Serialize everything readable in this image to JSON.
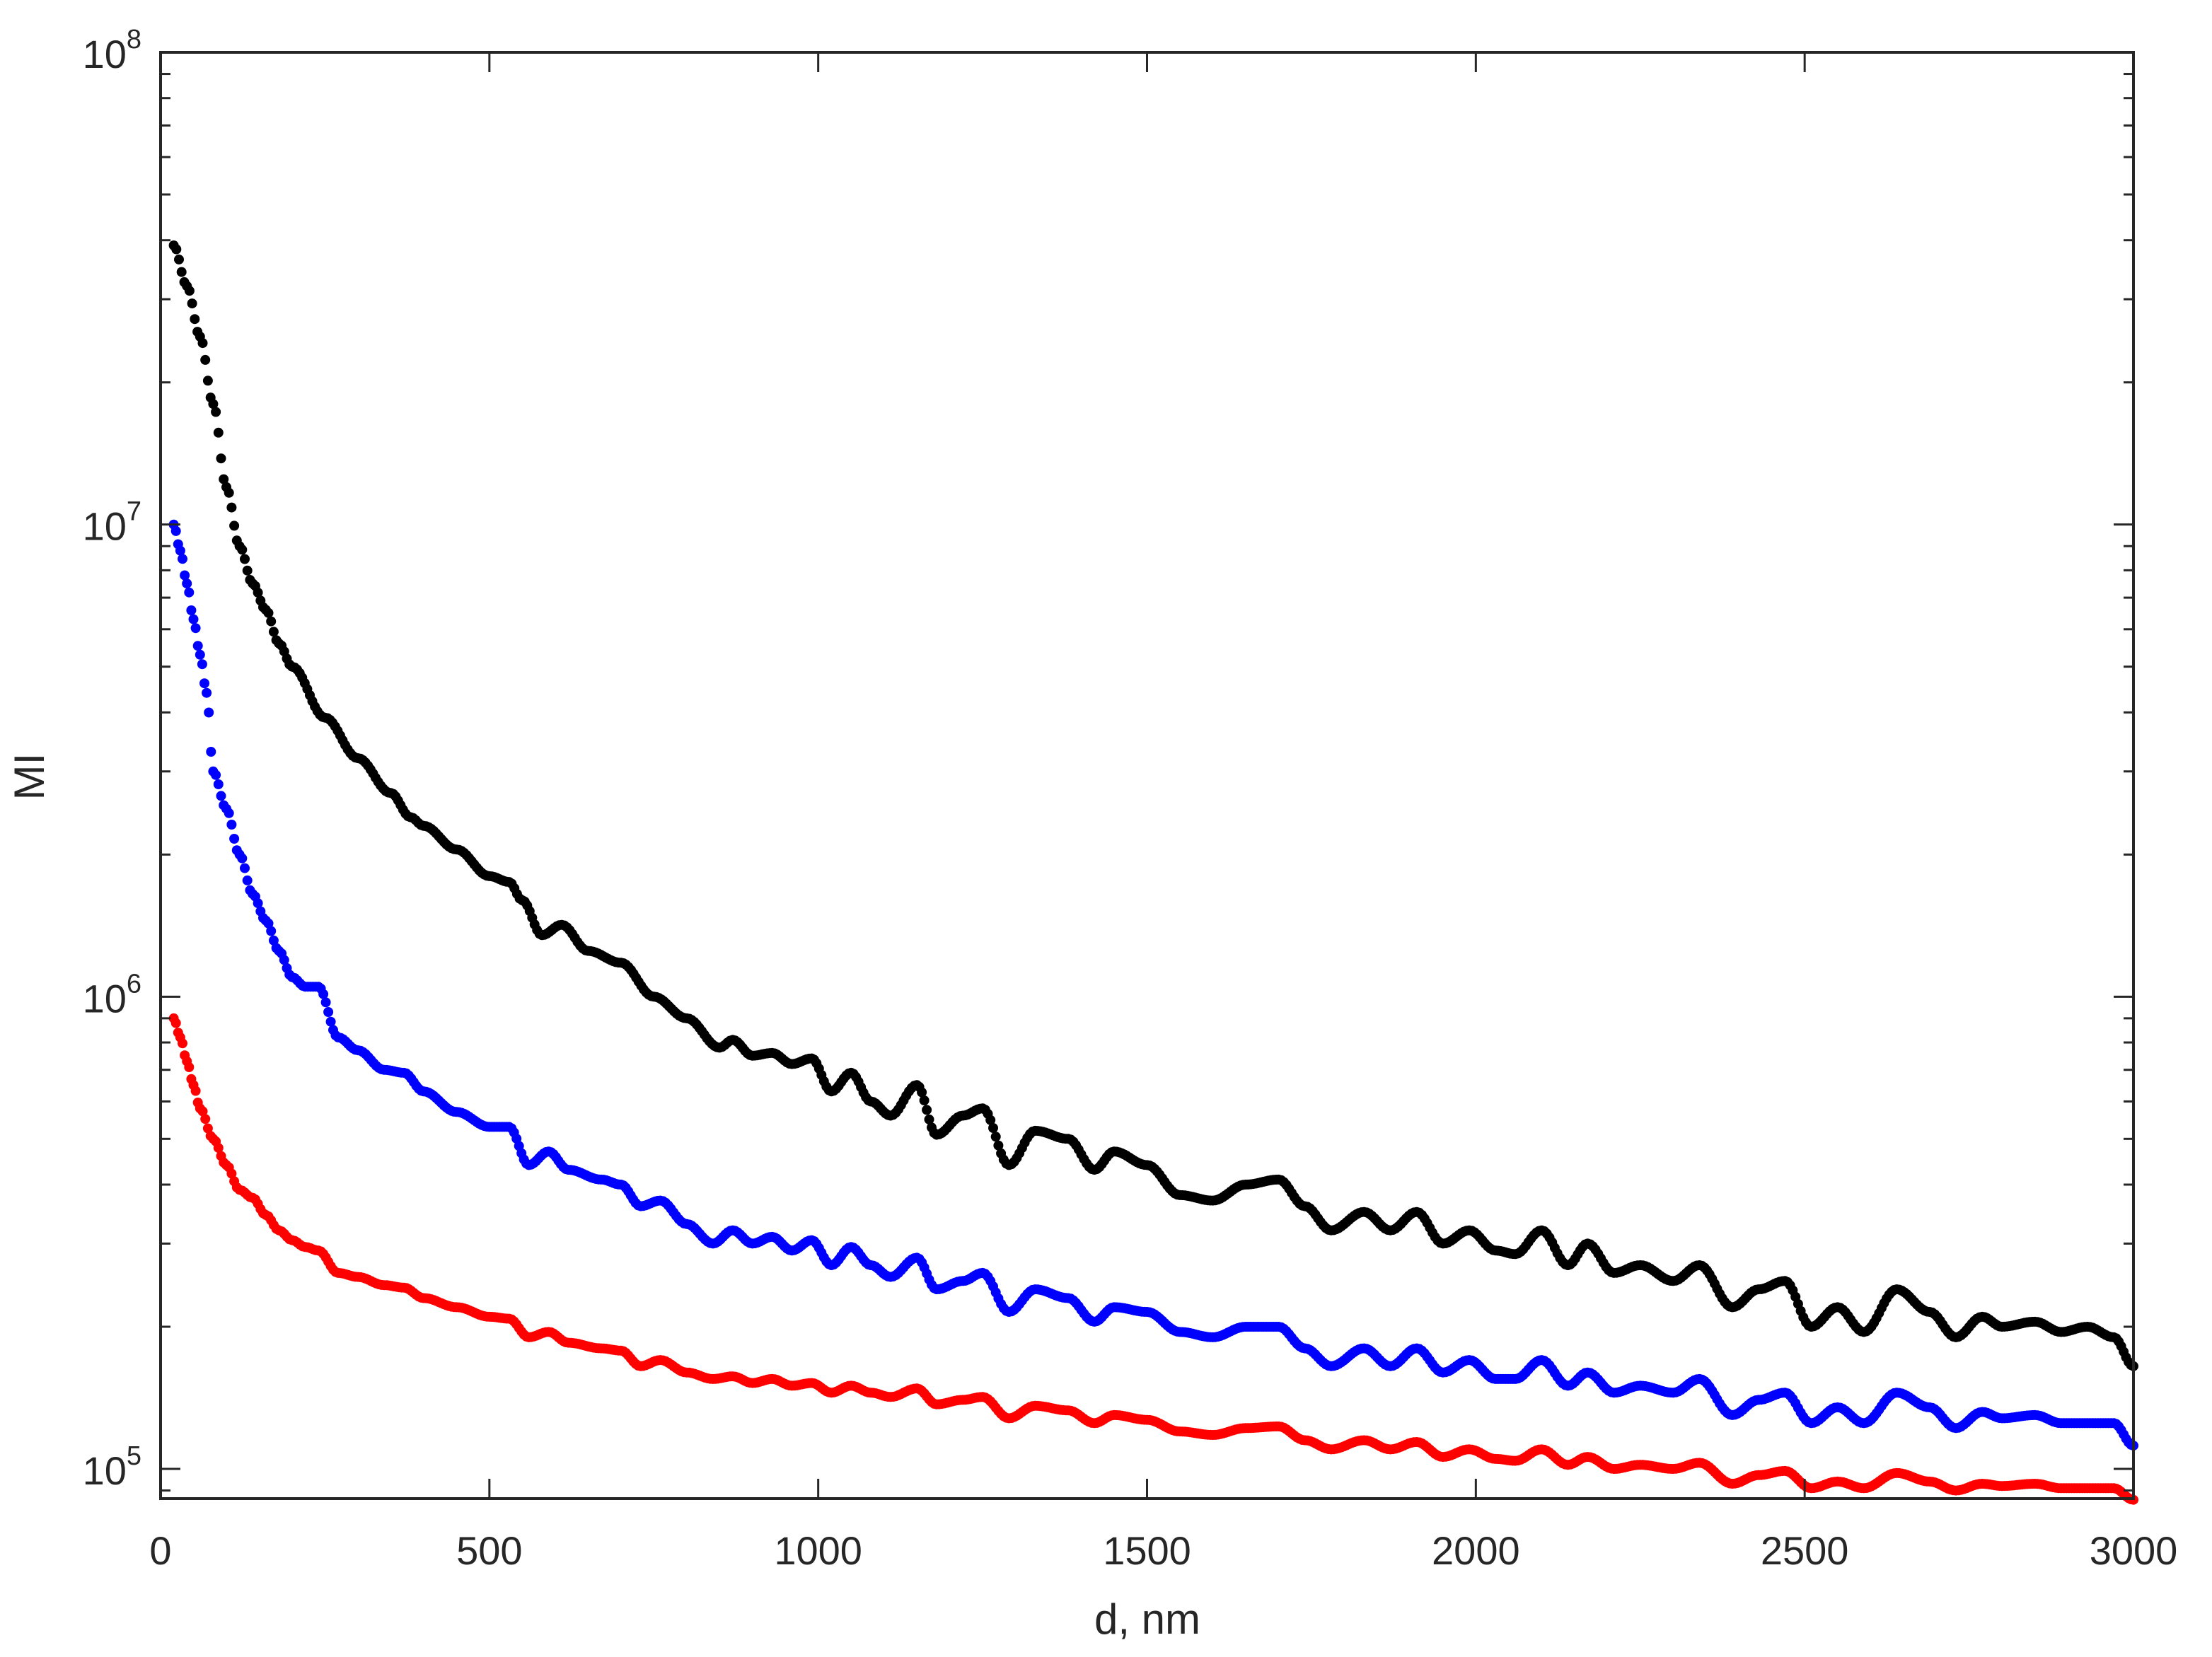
{
  "chart_data": {
    "type": "scatter",
    "title": "",
    "xlabel": "d, nm",
    "ylabel": "MI",
    "xscale": "linear",
    "yscale": "log",
    "xlim": [
      0,
      3000
    ],
    "ylim": [
      86500,
      100000000
    ],
    "xticks": [
      0,
      500,
      1000,
      1500,
      2000,
      2500,
      3000
    ],
    "xtick_labels": [
      "0",
      "500",
      "1000",
      "1500",
      "2000",
      "2500",
      "3000"
    ],
    "yticks": [
      100000,
      1000000,
      10000000,
      100000000
    ],
    "ytick_labels": [
      {
        "base": "10",
        "exp": "5"
      },
      {
        "base": "10",
        "exp": "6"
      },
      {
        "base": "10",
        "exp": "7"
      },
      {
        "base": "10",
        "exp": "8"
      }
    ],
    "grid": false,
    "legend": null,
    "box": true,
    "series": [
      {
        "name": "black",
        "color": "#000000",
        "points": [
          [
            20,
            39000000.0
          ],
          [
            40,
            32000000.0
          ],
          [
            60,
            25000000.0
          ],
          [
            80,
            18000000.0
          ],
          [
            100,
            12000000.0
          ],
          [
            120,
            9000000.0
          ],
          [
            140,
            7500000.0
          ],
          [
            160,
            6600000.0
          ],
          [
            180,
            5600000.0
          ],
          [
            200,
            5000000.0
          ],
          [
            250,
            3900000.0
          ],
          [
            300,
            3200000.0
          ],
          [
            350,
            2700000.0
          ],
          [
            380,
            2400000.0
          ],
          [
            400,
            2300000.0
          ],
          [
            450,
            2050000.0
          ],
          [
            500,
            1800000.0
          ],
          [
            530,
            1750000.0
          ],
          [
            550,
            1600000.0
          ],
          [
            580,
            1350000.0
          ],
          [
            610,
            1420000.0
          ],
          [
            650,
            1250000.0
          ],
          [
            700,
            1180000.0
          ],
          [
            750,
            1000000.0
          ],
          [
            800,
            900000.0
          ],
          [
            850,
            780000.0
          ],
          [
            870,
            810000.0
          ],
          [
            900,
            750000.0
          ],
          [
            930,
            760000.0
          ],
          [
            960,
            720000.0
          ],
          [
            990,
            740000.0
          ],
          [
            1020,
            630000.0
          ],
          [
            1050,
            690000.0
          ],
          [
            1080,
            600000.0
          ],
          [
            1110,
            560000.0
          ],
          [
            1150,
            650000.0
          ],
          [
            1180,
            510000.0
          ],
          [
            1220,
            560000.0
          ],
          [
            1250,
            580000.0
          ],
          [
            1290,
            440000.0
          ],
          [
            1330,
            520000.0
          ],
          [
            1380,
            500000.0
          ],
          [
            1420,
            430000.0
          ],
          [
            1450,
            470000.0
          ],
          [
            1500,
            440000.0
          ],
          [
            1550,
            380000.0
          ],
          [
            1600,
            370000.0
          ],
          [
            1650,
            400000.0
          ],
          [
            1700,
            410000.0
          ],
          [
            1740,
            360000.0
          ],
          [
            1780,
            320000.0
          ],
          [
            1830,
            350000.0
          ],
          [
            1870,
            320000.0
          ],
          [
            1910,
            350000.0
          ],
          [
            1950,
            300000.0
          ],
          [
            1990,
            320000.0
          ],
          [
            2030,
            290000.0
          ],
          [
            2060,
            285000.0
          ],
          [
            2100,
            320000.0
          ],
          [
            2140,
            270000.0
          ],
          [
            2170,
            300000.0
          ],
          [
            2210,
            260000.0
          ],
          [
            2250,
            270000.0
          ],
          [
            2300,
            250000.0
          ],
          [
            2340,
            270000.0
          ],
          [
            2390,
            220000.0
          ],
          [
            2430,
            240000.0
          ],
          [
            2470,
            250000.0
          ],
          [
            2510,
            200000.0
          ],
          [
            2550,
            220000.0
          ],
          [
            2590,
            195000.0
          ],
          [
            2640,
            240000.0
          ],
          [
            2690,
            215000.0
          ],
          [
            2730,
            190000.0
          ],
          [
            2770,
            210000.0
          ],
          [
            2800,
            200000.0
          ],
          [
            2850,
            205000.0
          ],
          [
            2890,
            195000.0
          ],
          [
            2930,
            200000.0
          ],
          [
            2970,
            190000.0
          ],
          [
            3000,
            165000.0
          ]
        ]
      },
      {
        "name": "blue",
        "color": "#0000ff",
        "points": [
          [
            20,
            10000000.0
          ],
          [
            30,
            8800000.0
          ],
          [
            40,
            7500000.0
          ],
          [
            50,
            6300000.0
          ],
          [
            60,
            5300000.0
          ],
          [
            70,
            4400000.0
          ],
          [
            80,
            3000000.0
          ],
          [
            100,
            2500000.0
          ],
          [
            120,
            2000000.0
          ],
          [
            140,
            1650000.0
          ],
          [
            160,
            1450000.0
          ],
          [
            180,
            1250000.0
          ],
          [
            200,
            1100000.0
          ],
          [
            220,
            1050000.0
          ],
          [
            240,
            1050000.0
          ],
          [
            270,
            820000.0
          ],
          [
            300,
            770000.0
          ],
          [
            340,
            700000.0
          ],
          [
            370,
            690000.0
          ],
          [
            400,
            630000.0
          ],
          [
            450,
            570000.0
          ],
          [
            500,
            530000.0
          ],
          [
            530,
            530000.0
          ],
          [
            560,
            440000.0
          ],
          [
            590,
            470000.0
          ],
          [
            620,
            430000.0
          ],
          [
            670,
            410000.0
          ],
          [
            700,
            400000.0
          ],
          [
            730,
            360000.0
          ],
          [
            760,
            370000.0
          ],
          [
            800,
            330000.0
          ],
          [
            840,
            300000.0
          ],
          [
            870,
            320000.0
          ],
          [
            900,
            300000.0
          ],
          [
            930,
            310000.0
          ],
          [
            960,
            290000.0
          ],
          [
            990,
            305000.0
          ],
          [
            1020,
            270000.0
          ],
          [
            1050,
            295000.0
          ],
          [
            1080,
            270000.0
          ],
          [
            1110,
            255000.0
          ],
          [
            1150,
            280000.0
          ],
          [
            1180,
            240000.0
          ],
          [
            1220,
            250000.0
          ],
          [
            1250,
            260000.0
          ],
          [
            1290,
            215000.0
          ],
          [
            1330,
            240000.0
          ],
          [
            1380,
            230000.0
          ],
          [
            1420,
            205000.0
          ],
          [
            1450,
            220000.0
          ],
          [
            1500,
            215000.0
          ],
          [
            1550,
            195000.0
          ],
          [
            1600,
            190000.0
          ],
          [
            1650,
            200000.0
          ],
          [
            1700,
            200000.0
          ],
          [
            1740,
            180000.0
          ],
          [
            1780,
            165000.0
          ],
          [
            1830,
            180000.0
          ],
          [
            1870,
            165000.0
          ],
          [
            1910,
            180000.0
          ],
          [
            1950,
            160000.0
          ],
          [
            1990,
            170000.0
          ],
          [
            2030,
            155000.0
          ],
          [
            2060,
            155000.0
          ],
          [
            2100,
            170000.0
          ],
          [
            2140,
            150000.0
          ],
          [
            2170,
            160000.0
          ],
          [
            2210,
            145000.0
          ],
          [
            2250,
            150000.0
          ],
          [
            2300,
            145000.0
          ],
          [
            2340,
            155000.0
          ],
          [
            2390,
            130000.0
          ],
          [
            2430,
            140000.0
          ],
          [
            2470,
            145000.0
          ],
          [
            2510,
            125000.0
          ],
          [
            2550,
            135000.0
          ],
          [
            2590,
            125000.0
          ],
          [
            2640,
            145000.0
          ],
          [
            2690,
            135000.0
          ],
          [
            2730,
            122000.0
          ],
          [
            2770,
            132000.0
          ],
          [
            2800,
            128000.0
          ],
          [
            2850,
            130000.0
          ],
          [
            2890,
            125000.0
          ],
          [
            2930,
            125000.0
          ],
          [
            2970,
            125000.0
          ],
          [
            3000,
            112000.0
          ]
        ]
      },
      {
        "name": "red",
        "color": "#ff0000",
        "points": [
          [
            20,
            900000.0
          ],
          [
            30,
            820000.0
          ],
          [
            40,
            730000.0
          ],
          [
            50,
            650000.0
          ],
          [
            60,
            580000.0
          ],
          [
            80,
            500000.0
          ],
          [
            100,
            440000.0
          ],
          [
            120,
            390000.0
          ],
          [
            140,
            375000.0
          ],
          [
            160,
            345000.0
          ],
          [
            180,
            320000.0
          ],
          [
            200,
            305000.0
          ],
          [
            220,
            295000.0
          ],
          [
            240,
            290000.0
          ],
          [
            270,
            260000.0
          ],
          [
            300,
            255000.0
          ],
          [
            340,
            245000.0
          ],
          [
            370,
            242000.0
          ],
          [
            400,
            230000.0
          ],
          [
            450,
            220000.0
          ],
          [
            500,
            210000.0
          ],
          [
            530,
            208000.0
          ],
          [
            560,
            190000.0
          ],
          [
            590,
            195000.0
          ],
          [
            620,
            185000.0
          ],
          [
            670,
            180000.0
          ],
          [
            700,
            178000.0
          ],
          [
            730,
            165000.0
          ],
          [
            760,
            170000.0
          ],
          [
            800,
            160000.0
          ],
          [
            840,
            155000.0
          ],
          [
            870,
            157000.0
          ],
          [
            900,
            152000.0
          ],
          [
            930,
            155000.0
          ],
          [
            960,
            150000.0
          ],
          [
            990,
            152000.0
          ],
          [
            1020,
            145000.0
          ],
          [
            1050,
            150000.0
          ],
          [
            1080,
            145000.0
          ],
          [
            1110,
            142000.0
          ],
          [
            1150,
            148000.0
          ],
          [
            1180,
            137000.0
          ],
          [
            1220,
            140000.0
          ],
          [
            1250,
            142000.0
          ],
          [
            1290,
            128000.0
          ],
          [
            1330,
            136000.0
          ],
          [
            1380,
            133000.0
          ],
          [
            1420,
            125000.0
          ],
          [
            1450,
            130000.0
          ],
          [
            1500,
            127000.0
          ],
          [
            1550,
            120000.0
          ],
          [
            1600,
            118000.0
          ],
          [
            1650,
            122000.0
          ],
          [
            1700,
            123000.0
          ],
          [
            1740,
            115000.0
          ],
          [
            1780,
            110000.0
          ],
          [
            1830,
            115000.0
          ],
          [
            1870,
            110000.0
          ],
          [
            1910,
            114000.0
          ],
          [
            1950,
            106000.0
          ],
          [
            1990,
            110000.0
          ],
          [
            2030,
            105000.0
          ],
          [
            2060,
            104000.0
          ],
          [
            2100,
            110000.0
          ],
          [
            2140,
            102000.0
          ],
          [
            2170,
            106000.0
          ],
          [
            2210,
            100000.0
          ],
          [
            2250,
            102000.0
          ],
          [
            2300,
            100000.0
          ],
          [
            2340,
            103000.0
          ],
          [
            2390,
            93000.0
          ],
          [
            2430,
            97000.0
          ],
          [
            2470,
            99000.0
          ],
          [
            2510,
            91000.0
          ],
          [
            2550,
            94000.0
          ],
          [
            2590,
            91000.0
          ],
          [
            2640,
            98000.0
          ],
          [
            2690,
            94000.0
          ],
          [
            2730,
            90000.0
          ],
          [
            2770,
            93000.0
          ],
          [
            2800,
            92000.0
          ],
          [
            2850,
            93000.0
          ],
          [
            2890,
            91000.0
          ],
          [
            2930,
            91000.0
          ],
          [
            2970,
            91000.0
          ],
          [
            3000,
            86000.0
          ]
        ]
      }
    ]
  },
  "axes": {
    "xlabel": "d, nm",
    "ylabel": "MI"
  }
}
